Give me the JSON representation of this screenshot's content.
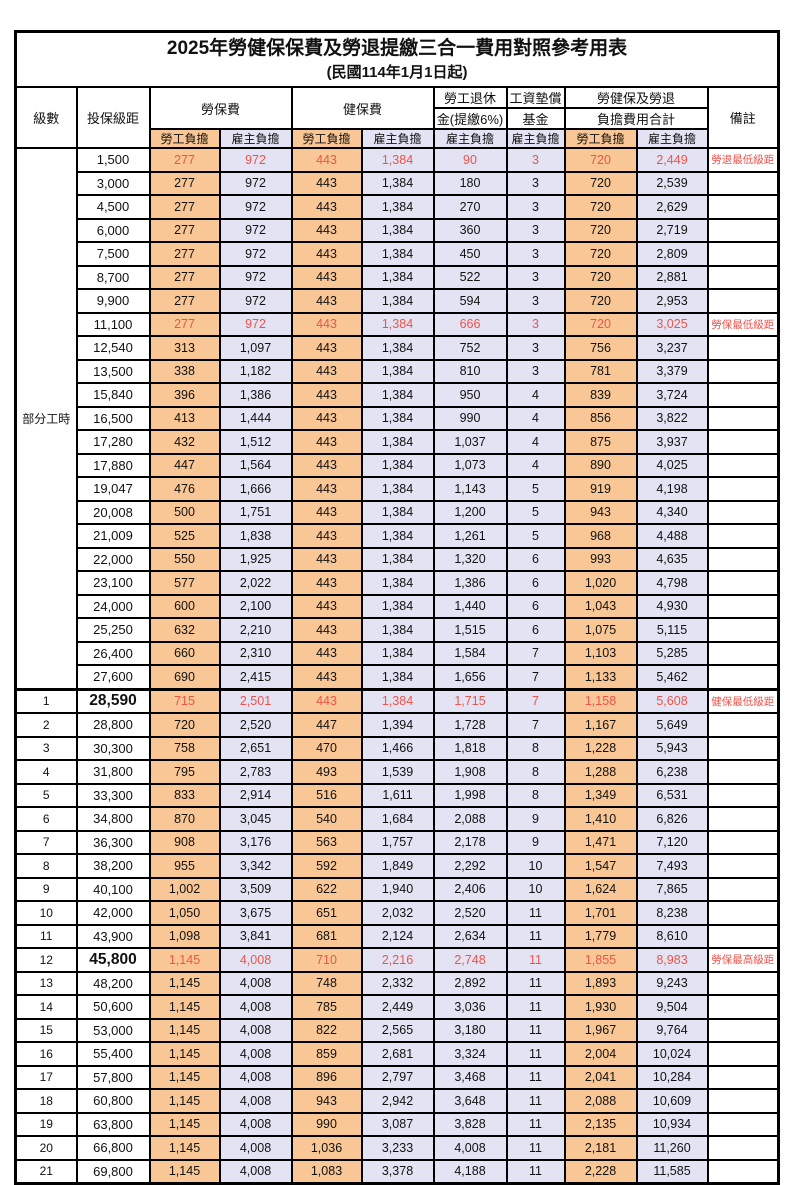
{
  "title": "2025年勞健保保費及勞退提繳三合一費用對照參考用表",
  "subtitle": "(民國114年1月1日起)",
  "colors": {
    "employee_bg": "#F9C795",
    "employer_bg": "#E4E3F3",
    "highlight_red": "#EC544B",
    "border": "#000000"
  },
  "header": {
    "level": "級數",
    "bracket": "投保級距",
    "labor_insurance": "勞保費",
    "health_insurance": "健保費",
    "pension_line1": "勞工退休",
    "pension_line2": "金(提繳6%)",
    "wage_fund_line1": "工資墊償",
    "wage_fund_line2": "基金",
    "total_line1": "勞健保及勞退",
    "total_line2": "負擔費用合計",
    "remark": "備註",
    "employee_share": "勞工負擔",
    "employer_share": "雇主負擔"
  },
  "part_time_label": "部分工時",
  "value_columns": [
    "labor-employee",
    "labor-employer",
    "health-employee",
    "health-employer",
    "pension-employer",
    "wagefund-employer",
    "total-employee",
    "total-employer"
  ],
  "rows": [
    {
      "level": "",
      "bracket": "1,500",
      "values": [
        "277",
        "972",
        "443",
        "1,384",
        "90",
        "3",
        "720",
        "2,449"
      ],
      "remark": "勞退最低級距",
      "red": true,
      "big": false
    },
    {
      "level": "",
      "bracket": "3,000",
      "values": [
        "277",
        "972",
        "443",
        "1,384",
        "180",
        "3",
        "720",
        "2,539"
      ],
      "remark": "",
      "red": false,
      "big": false
    },
    {
      "level": "",
      "bracket": "4,500",
      "values": [
        "277",
        "972",
        "443",
        "1,384",
        "270",
        "3",
        "720",
        "2,629"
      ],
      "remark": "",
      "red": false,
      "big": false
    },
    {
      "level": "",
      "bracket": "6,000",
      "values": [
        "277",
        "972",
        "443",
        "1,384",
        "360",
        "3",
        "720",
        "2,719"
      ],
      "remark": "",
      "red": false,
      "big": false
    },
    {
      "level": "",
      "bracket": "7,500",
      "values": [
        "277",
        "972",
        "443",
        "1,384",
        "450",
        "3",
        "720",
        "2,809"
      ],
      "remark": "",
      "red": false,
      "big": false
    },
    {
      "level": "",
      "bracket": "8,700",
      "values": [
        "277",
        "972",
        "443",
        "1,384",
        "522",
        "3",
        "720",
        "2,881"
      ],
      "remark": "",
      "red": false,
      "big": false
    },
    {
      "level": "",
      "bracket": "9,900",
      "values": [
        "277",
        "972",
        "443",
        "1,384",
        "594",
        "3",
        "720",
        "2,953"
      ],
      "remark": "",
      "red": false,
      "big": false
    },
    {
      "level": "",
      "bracket": "11,100",
      "values": [
        "277",
        "972",
        "443",
        "1,384",
        "666",
        "3",
        "720",
        "3,025"
      ],
      "remark": "勞保最低級距",
      "red": true,
      "big": false
    },
    {
      "level": "",
      "bracket": "12,540",
      "values": [
        "313",
        "1,097",
        "443",
        "1,384",
        "752",
        "3",
        "756",
        "3,237"
      ],
      "remark": "",
      "red": false,
      "big": false
    },
    {
      "level": "",
      "bracket": "13,500",
      "values": [
        "338",
        "1,182",
        "443",
        "1,384",
        "810",
        "3",
        "781",
        "3,379"
      ],
      "remark": "",
      "red": false,
      "big": false
    },
    {
      "level": "",
      "bracket": "15,840",
      "values": [
        "396",
        "1,386",
        "443",
        "1,384",
        "950",
        "4",
        "839",
        "3,724"
      ],
      "remark": "",
      "red": false,
      "big": false
    },
    {
      "level": "",
      "bracket": "16,500",
      "values": [
        "413",
        "1,444",
        "443",
        "1,384",
        "990",
        "4",
        "856",
        "3,822"
      ],
      "remark": "",
      "red": false,
      "big": false
    },
    {
      "level": "",
      "bracket": "17,280",
      "values": [
        "432",
        "1,512",
        "443",
        "1,384",
        "1,037",
        "4",
        "875",
        "3,937"
      ],
      "remark": "",
      "red": false,
      "big": false
    },
    {
      "level": "",
      "bracket": "17,880",
      "values": [
        "447",
        "1,564",
        "443",
        "1,384",
        "1,073",
        "4",
        "890",
        "4,025"
      ],
      "remark": "",
      "red": false,
      "big": false
    },
    {
      "level": "",
      "bracket": "19,047",
      "values": [
        "476",
        "1,666",
        "443",
        "1,384",
        "1,143",
        "5",
        "919",
        "4,198"
      ],
      "remark": "",
      "red": false,
      "big": false
    },
    {
      "level": "",
      "bracket": "20,008",
      "values": [
        "500",
        "1,751",
        "443",
        "1,384",
        "1,200",
        "5",
        "943",
        "4,340"
      ],
      "remark": "",
      "red": false,
      "big": false
    },
    {
      "level": "",
      "bracket": "21,009",
      "values": [
        "525",
        "1,838",
        "443",
        "1,384",
        "1,261",
        "5",
        "968",
        "4,488"
      ],
      "remark": "",
      "red": false,
      "big": false
    },
    {
      "level": "",
      "bracket": "22,000",
      "values": [
        "550",
        "1,925",
        "443",
        "1,384",
        "1,320",
        "6",
        "993",
        "4,635"
      ],
      "remark": "",
      "red": false,
      "big": false
    },
    {
      "level": "",
      "bracket": "23,100",
      "values": [
        "577",
        "2,022",
        "443",
        "1,384",
        "1,386",
        "6",
        "1,020",
        "4,798"
      ],
      "remark": "",
      "red": false,
      "big": false
    },
    {
      "level": "",
      "bracket": "24,000",
      "values": [
        "600",
        "2,100",
        "443",
        "1,384",
        "1,440",
        "6",
        "1,043",
        "4,930"
      ],
      "remark": "",
      "red": false,
      "big": false
    },
    {
      "level": "",
      "bracket": "25,250",
      "values": [
        "632",
        "2,210",
        "443",
        "1,384",
        "1,515",
        "6",
        "1,075",
        "5,115"
      ],
      "remark": "",
      "red": false,
      "big": false
    },
    {
      "level": "",
      "bracket": "26,400",
      "values": [
        "660",
        "2,310",
        "443",
        "1,384",
        "1,584",
        "7",
        "1,103",
        "5,285"
      ],
      "remark": "",
      "red": false,
      "big": false
    },
    {
      "level": "",
      "bracket": "27,600",
      "values": [
        "690",
        "2,415",
        "443",
        "1,384",
        "1,656",
        "7",
        "1,133",
        "5,462"
      ],
      "remark": "",
      "red": false,
      "big": false
    },
    {
      "level": "1",
      "bracket": "28,590",
      "values": [
        "715",
        "2,501",
        "443",
        "1,384",
        "1,715",
        "7",
        "1,158",
        "5,608"
      ],
      "remark": "健保最低級距",
      "red": true,
      "big": true,
      "section_start": true
    },
    {
      "level": "2",
      "bracket": "28,800",
      "values": [
        "720",
        "2,520",
        "447",
        "1,394",
        "1,728",
        "7",
        "1,167",
        "5,649"
      ],
      "remark": "",
      "red": false,
      "big": false
    },
    {
      "level": "3",
      "bracket": "30,300",
      "values": [
        "758",
        "2,651",
        "470",
        "1,466",
        "1,818",
        "8",
        "1,228",
        "5,943"
      ],
      "remark": "",
      "red": false,
      "big": false
    },
    {
      "level": "4",
      "bracket": "31,800",
      "values": [
        "795",
        "2,783",
        "493",
        "1,539",
        "1,908",
        "8",
        "1,288",
        "6,238"
      ],
      "remark": "",
      "red": false,
      "big": false
    },
    {
      "level": "5",
      "bracket": "33,300",
      "values": [
        "833",
        "2,914",
        "516",
        "1,611",
        "1,998",
        "8",
        "1,349",
        "6,531"
      ],
      "remark": "",
      "red": false,
      "big": false
    },
    {
      "level": "6",
      "bracket": "34,800",
      "values": [
        "870",
        "3,045",
        "540",
        "1,684",
        "2,088",
        "9",
        "1,410",
        "6,826"
      ],
      "remark": "",
      "red": false,
      "big": false
    },
    {
      "level": "7",
      "bracket": "36,300",
      "values": [
        "908",
        "3,176",
        "563",
        "1,757",
        "2,178",
        "9",
        "1,471",
        "7,120"
      ],
      "remark": "",
      "red": false,
      "big": false
    },
    {
      "level": "8",
      "bracket": "38,200",
      "values": [
        "955",
        "3,342",
        "592",
        "1,849",
        "2,292",
        "10",
        "1,547",
        "7,493"
      ],
      "remark": "",
      "red": false,
      "big": false
    },
    {
      "level": "9",
      "bracket": "40,100",
      "values": [
        "1,002",
        "3,509",
        "622",
        "1,940",
        "2,406",
        "10",
        "1,624",
        "7,865"
      ],
      "remark": "",
      "red": false,
      "big": false
    },
    {
      "level": "10",
      "bracket": "42,000",
      "values": [
        "1,050",
        "3,675",
        "651",
        "2,032",
        "2,520",
        "11",
        "1,701",
        "8,238"
      ],
      "remark": "",
      "red": false,
      "big": false
    },
    {
      "level": "11",
      "bracket": "43,900",
      "values": [
        "1,098",
        "3,841",
        "681",
        "2,124",
        "2,634",
        "11",
        "1,779",
        "8,610"
      ],
      "remark": "",
      "red": false,
      "big": false
    },
    {
      "level": "12",
      "bracket": "45,800",
      "values": [
        "1,145",
        "4,008",
        "710",
        "2,216",
        "2,748",
        "11",
        "1,855",
        "8,983"
      ],
      "remark": "勞保最高級距",
      "red": true,
      "big": true
    },
    {
      "level": "13",
      "bracket": "48,200",
      "values": [
        "1,145",
        "4,008",
        "748",
        "2,332",
        "2,892",
        "11",
        "1,893",
        "9,243"
      ],
      "remark": "",
      "red": false,
      "big": false
    },
    {
      "level": "14",
      "bracket": "50,600",
      "values": [
        "1,145",
        "4,008",
        "785",
        "2,449",
        "3,036",
        "11",
        "1,930",
        "9,504"
      ],
      "remark": "",
      "red": false,
      "big": false
    },
    {
      "level": "15",
      "bracket": "53,000",
      "values": [
        "1,145",
        "4,008",
        "822",
        "2,565",
        "3,180",
        "11",
        "1,967",
        "9,764"
      ],
      "remark": "",
      "red": false,
      "big": false
    },
    {
      "level": "16",
      "bracket": "55,400",
      "values": [
        "1,145",
        "4,008",
        "859",
        "2,681",
        "3,324",
        "11",
        "2,004",
        "10,024"
      ],
      "remark": "",
      "red": false,
      "big": false
    },
    {
      "level": "17",
      "bracket": "57,800",
      "values": [
        "1,145",
        "4,008",
        "896",
        "2,797",
        "3,468",
        "11",
        "2,041",
        "10,284"
      ],
      "remark": "",
      "red": false,
      "big": false
    },
    {
      "level": "18",
      "bracket": "60,800",
      "values": [
        "1,145",
        "4,008",
        "943",
        "2,942",
        "3,648",
        "11",
        "2,088",
        "10,609"
      ],
      "remark": "",
      "red": false,
      "big": false
    },
    {
      "level": "19",
      "bracket": "63,800",
      "values": [
        "1,145",
        "4,008",
        "990",
        "3,087",
        "3,828",
        "11",
        "2,135",
        "10,934"
      ],
      "remark": "",
      "red": false,
      "big": false
    },
    {
      "level": "20",
      "bracket": "66,800",
      "values": [
        "1,145",
        "4,008",
        "1,036",
        "3,233",
        "4,008",
        "11",
        "2,181",
        "11,260"
      ],
      "remark": "",
      "red": false,
      "big": false
    },
    {
      "level": "21",
      "bracket": "69,800",
      "values": [
        "1,145",
        "4,008",
        "1,083",
        "3,378",
        "4,188",
        "11",
        "2,228",
        "11,585"
      ],
      "remark": "",
      "red": false,
      "big": false
    }
  ]
}
